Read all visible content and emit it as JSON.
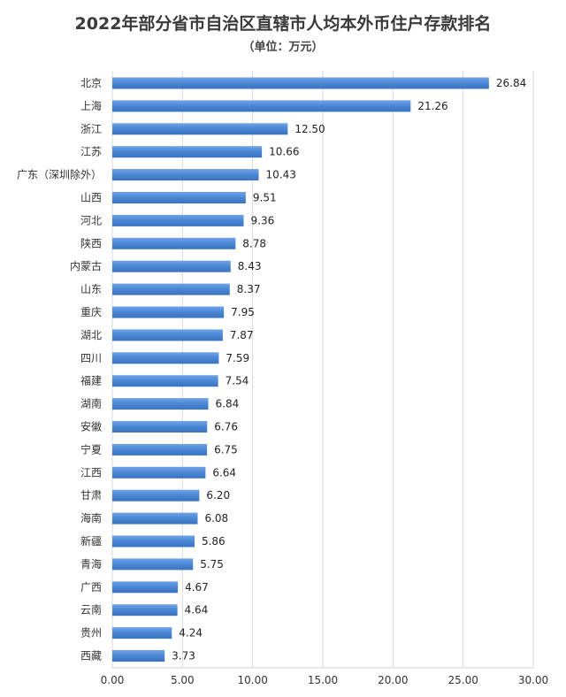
{
  "chart_data": {
    "type": "bar",
    "orientation": "horizontal",
    "title": "2022年部分省市自治区直辖市人均本外币住户存款排名",
    "subtitle": "（单位：万元）",
    "categories": [
      "北京",
      "上海",
      "浙江",
      "江苏",
      "广东（深圳除外）",
      "山西",
      "河北",
      "陕西",
      "内蒙古",
      "山东",
      "重庆",
      "湖北",
      "四川",
      "福建",
      "湖南",
      "安徽",
      "宁夏",
      "江西",
      "甘肃",
      "海南",
      "新疆",
      "青海",
      "广西",
      "云南",
      "贵州",
      "西藏"
    ],
    "values": [
      26.84,
      21.26,
      12.5,
      10.66,
      10.43,
      9.51,
      9.36,
      8.78,
      8.43,
      8.37,
      7.95,
      7.87,
      7.59,
      7.54,
      6.84,
      6.76,
      6.75,
      6.64,
      6.2,
      6.08,
      5.86,
      5.75,
      4.67,
      4.64,
      4.24,
      3.73
    ],
    "value_labels": [
      "26.84",
      "21.26",
      "12.50",
      "10.66",
      "10.43",
      "9.51",
      "9.36",
      "8.78",
      "8.43",
      "8.37",
      "7.95",
      "7.87",
      "7.59",
      "7.54",
      "6.84",
      "6.76",
      "6.75",
      "6.64",
      "6.20",
      "6.08",
      "5.86",
      "5.75",
      "4.67",
      "4.64",
      "4.24",
      "3.73"
    ],
    "x_ticks": [
      "0.00",
      "5.00",
      "10.00",
      "15.00",
      "20.00",
      "25.00",
      "30.00"
    ],
    "xlim": [
      0,
      30
    ],
    "grid": true,
    "bar_color": "#4a86d4"
  }
}
